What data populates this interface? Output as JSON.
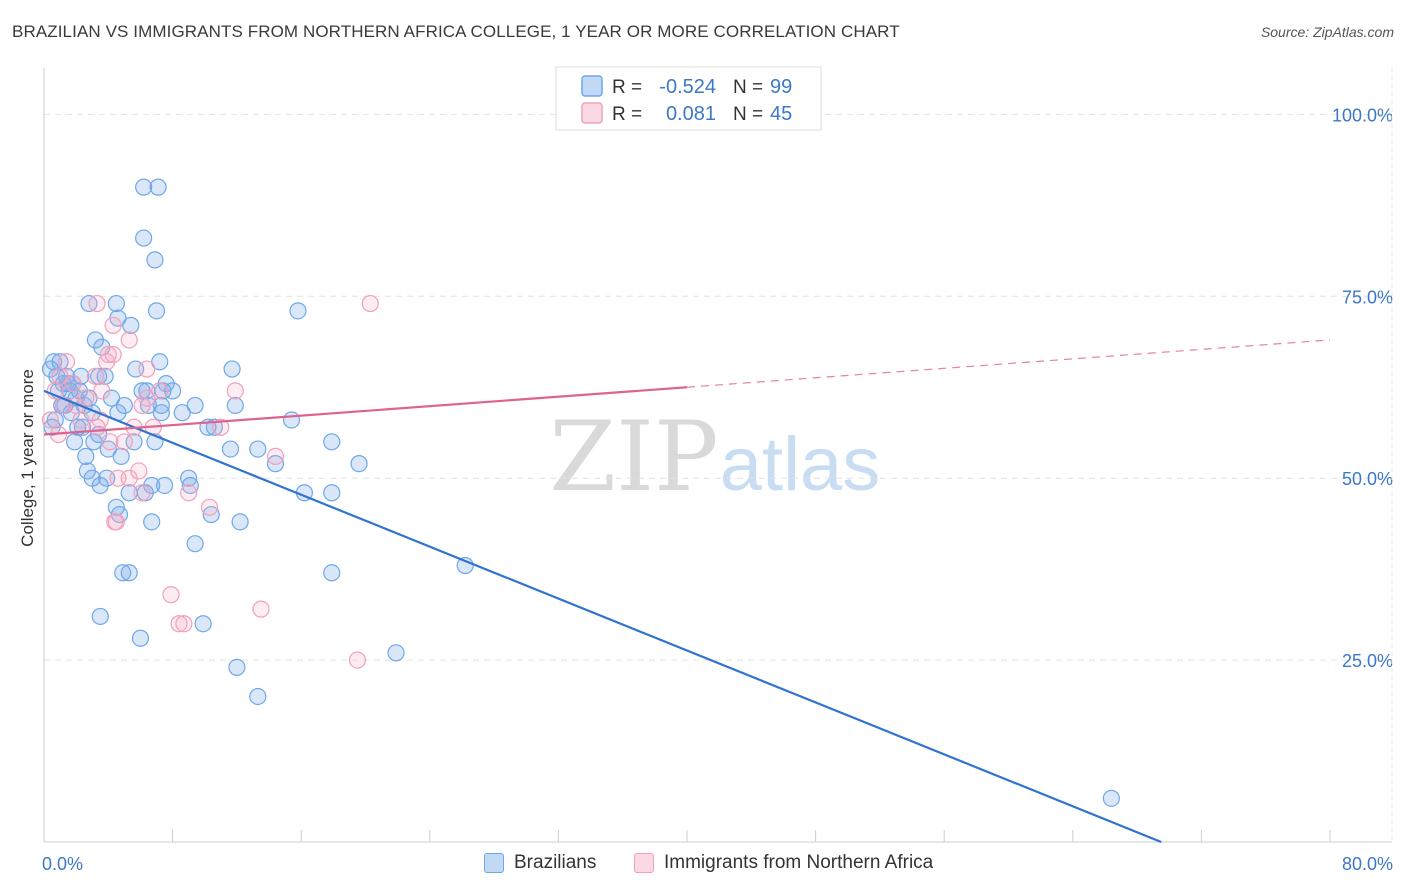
{
  "title": "BRAZILIAN VS IMMIGRANTS FROM NORTHERN AFRICA COLLEGE, 1 YEAR OR MORE CORRELATION CHART",
  "source": "Source: ZipAtlas.com",
  "watermark": {
    "zip": "ZIP",
    "atlas": "atlas"
  },
  "colors": {
    "blue": "#6fa8e8",
    "blue_fill": "rgba(120,170,235,0.28)",
    "blue_line": "#2f74cf",
    "pink": "#f2a0bb",
    "pink_fill": "rgba(245,170,195,0.22)",
    "pink_line": "#e0628e",
    "accent_text": "#3c78c8",
    "grid": "#e2e2e2"
  },
  "legend_top": [
    {
      "r_label": "R =",
      "r_value": "-0.524",
      "n_label": "N =",
      "n_value": "99"
    },
    {
      "r_label": "R =",
      "r_value": "0.081",
      "n_label": "N =",
      "n_value": "45"
    }
  ],
  "legend_bottom": [
    {
      "label": "Brazilians"
    },
    {
      "label": "Immigrants from Northern Africa"
    }
  ],
  "chart_data": {
    "type": "scatter",
    "title": "BRAZILIAN VS IMMIGRANTS FROM NORTHERN AFRICA COLLEGE, 1 YEAR OR MORE CORRELATION CHART",
    "xlabel": "",
    "ylabel": "College, 1 year or more",
    "xlim": [
      0,
      80
    ],
    "ylim": [
      0,
      105
    ],
    "x_tick_labels": [
      "0.0%",
      "80.0%"
    ],
    "y_ticks": [
      25,
      50,
      75,
      100
    ],
    "y_tick_labels": [
      "25.0%",
      "50.0%",
      "75.0%",
      "100.0%"
    ],
    "series": [
      {
        "name": "Brazilians",
        "R": -0.524,
        "N": 99,
        "trend": {
          "x0": 0,
          "y0": 62,
          "x1": 69.5,
          "y1": 0
        },
        "points": [
          [
            0.4,
            65
          ],
          [
            0.6,
            66
          ],
          [
            0.8,
            64
          ],
          [
            1.0,
            66
          ],
          [
            1.2,
            63
          ],
          [
            1.4,
            64
          ],
          [
            1.6,
            62
          ],
          [
            1.8,
            63
          ],
          [
            2.0,
            61
          ],
          [
            0.9,
            62
          ],
          [
            1.3,
            60
          ],
          [
            1.7,
            59
          ],
          [
            2.2,
            62
          ],
          [
            2.5,
            60
          ],
          [
            2.8,
            61
          ],
          [
            3.0,
            59
          ],
          [
            2.4,
            57
          ],
          [
            1.9,
            55
          ],
          [
            2.6,
            53
          ],
          [
            3.4,
            64
          ],
          [
            3.2,
            69
          ],
          [
            3.6,
            68
          ],
          [
            2.8,
            74
          ],
          [
            4.5,
            74
          ],
          [
            4.6,
            72
          ],
          [
            5.4,
            71
          ],
          [
            6.1,
            62
          ],
          [
            6.4,
            62
          ],
          [
            7.6,
            63
          ],
          [
            7.3,
            60
          ],
          [
            5.0,
            60
          ],
          [
            4.6,
            59
          ],
          [
            3.8,
            64
          ],
          [
            3.4,
            56
          ],
          [
            4.0,
            54
          ],
          [
            4.8,
            53
          ],
          [
            5.6,
            55
          ],
          [
            3.9,
            50
          ],
          [
            3.5,
            49
          ],
          [
            2.7,
            51
          ],
          [
            3.0,
            50
          ],
          [
            4.5,
            46
          ],
          [
            4.7,
            45
          ],
          [
            5.3,
            48
          ],
          [
            6.3,
            48
          ],
          [
            6.7,
            49
          ],
          [
            7.5,
            49
          ],
          [
            9.0,
            50
          ],
          [
            9.1,
            49
          ],
          [
            6.9,
            55
          ],
          [
            6.5,
            60
          ],
          [
            7.3,
            59
          ],
          [
            8.6,
            59
          ],
          [
            9.4,
            60
          ],
          [
            10.2,
            57
          ],
          [
            10.6,
            57
          ],
          [
            11.6,
            54
          ],
          [
            11.9,
            60
          ],
          [
            11.7,
            65
          ],
          [
            13.3,
            54
          ],
          [
            14.4,
            52
          ],
          [
            15.4,
            58
          ],
          [
            16.2,
            48
          ],
          [
            17.9,
            55
          ],
          [
            17.9,
            48
          ],
          [
            19.6,
            52
          ],
          [
            15.8,
            73
          ],
          [
            7.0,
            73
          ],
          [
            7.2,
            66
          ],
          [
            6.9,
            80
          ],
          [
            6.2,
            83
          ],
          [
            6.2,
            90
          ],
          [
            7.1,
            90
          ],
          [
            4.9,
            37
          ],
          [
            5.3,
            37
          ],
          [
            3.5,
            31
          ],
          [
            6.0,
            28
          ],
          [
            9.9,
            30
          ],
          [
            9.4,
            41
          ],
          [
            10.4,
            45
          ],
          [
            12.2,
            44
          ],
          [
            6.7,
            44
          ],
          [
            12.0,
            24
          ],
          [
            13.3,
            20
          ],
          [
            17.9,
            37
          ],
          [
            21.9,
            26
          ],
          [
            26.2,
            38
          ],
          [
            66.4,
            6
          ],
          [
            5.7,
            65
          ],
          [
            7.4,
            62
          ],
          [
            8.0,
            62
          ],
          [
            1.1,
            60
          ],
          [
            2.1,
            57
          ],
          [
            0.7,
            58
          ],
          [
            3.1,
            55
          ],
          [
            1.5,
            63
          ],
          [
            2.3,
            64
          ],
          [
            0.5,
            57
          ],
          [
            4.2,
            61
          ]
        ]
      },
      {
        "name": "Immigrants from Northern Africa",
        "R": 0.081,
        "N": 45,
        "trend": {
          "x0": 0,
          "y0": 56,
          "x1": 40,
          "y1": 62.5,
          "dash_x1": 80,
          "dash_y1": 69
        },
        "points": [
          [
            0.4,
            58
          ],
          [
            0.7,
            62
          ],
          [
            1.0,
            64
          ],
          [
            1.4,
            66
          ],
          [
            1.8,
            63
          ],
          [
            2.0,
            60
          ],
          [
            2.3,
            58
          ],
          [
            2.6,
            61
          ],
          [
            1.2,
            60
          ],
          [
            0.9,
            56
          ],
          [
            3.2,
            64
          ],
          [
            3.6,
            62
          ],
          [
            3.9,
            66
          ],
          [
            4.3,
            67
          ],
          [
            3.5,
            58
          ],
          [
            3.3,
            57
          ],
          [
            4.1,
            55
          ],
          [
            5.0,
            55
          ],
          [
            5.6,
            57
          ],
          [
            6.1,
            60
          ],
          [
            6.4,
            61
          ],
          [
            6.8,
            57
          ],
          [
            7.2,
            62
          ],
          [
            6.4,
            65
          ],
          [
            4.3,
            71
          ],
          [
            3.3,
            74
          ],
          [
            5.3,
            69
          ],
          [
            4.0,
            67
          ],
          [
            4.6,
            50
          ],
          [
            5.3,
            50
          ],
          [
            6.1,
            48
          ],
          [
            5.9,
            51
          ],
          [
            4.4,
            44
          ],
          [
            9.0,
            48
          ],
          [
            10.3,
            46
          ],
          [
            11.0,
            57
          ],
          [
            11.9,
            62
          ],
          [
            14.4,
            53
          ],
          [
            7.9,
            34
          ],
          [
            8.4,
            30
          ],
          [
            8.7,
            30
          ],
          [
            13.5,
            32
          ],
          [
            19.5,
            25
          ],
          [
            20.3,
            74
          ],
          [
            4.5,
            44
          ]
        ]
      }
    ]
  }
}
